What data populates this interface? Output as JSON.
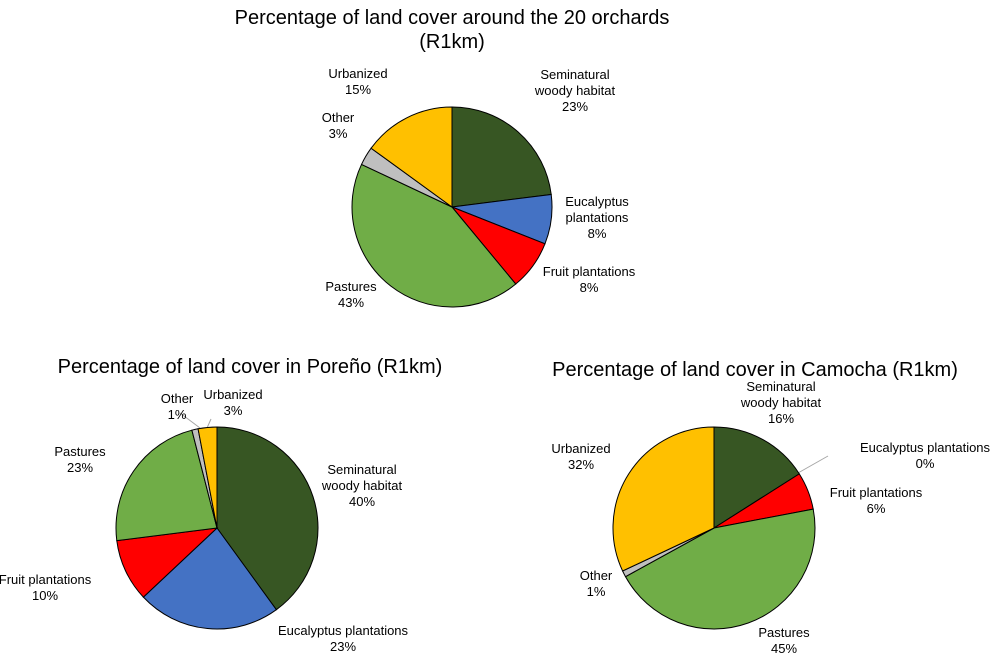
{
  "chart_data": [
    {
      "type": "pie",
      "title": "Percentage of land cover around the 20 orchards (R1km)",
      "categories": [
        "Seminatural woody habitat",
        "Eucalyptus plantations",
        "Fruit plantations",
        "Pastures",
        "Other",
        "Urbanized"
      ],
      "values": [
        23,
        8,
        8,
        43,
        3,
        15
      ],
      "value_labels": [
        "23%",
        "8%",
        "8%",
        "43%",
        "3%",
        "15%"
      ],
      "colors": [
        "#375623",
        "#4472c4",
        "#ff0000",
        "#70ad47",
        "#bfbfbf",
        "#ffc000"
      ]
    },
    {
      "type": "pie",
      "title": "Percentage of land cover in Poreño (R1km)",
      "categories": [
        "Seminatural woody habitat",
        "Eucalyptus plantations",
        "Fruit plantations",
        "Pastures",
        "Other",
        "Urbanized"
      ],
      "values": [
        40,
        23,
        10,
        23,
        1,
        3
      ],
      "value_labels": [
        "40%",
        "23%",
        "10%",
        "23%",
        "1%",
        "3%"
      ],
      "colors": [
        "#375623",
        "#4472c4",
        "#ff0000",
        "#70ad47",
        "#bfbfbf",
        "#ffc000"
      ]
    },
    {
      "type": "pie",
      "title": "Percentage of land cover in Camocha (R1km)",
      "categories": [
        "Seminatural woody habitat",
        "Eucalyptus plantations",
        "Fruit plantations",
        "Pastures",
        "Other",
        "Urbanized"
      ],
      "values": [
        16,
        0,
        6,
        45,
        1,
        32
      ],
      "value_labels": [
        "16%",
        "0%",
        "6%",
        "45%",
        "1%",
        "32%"
      ],
      "colors": [
        "#375623",
        "#4472c4",
        "#ff0000",
        "#70ad47",
        "#bfbfbf",
        "#ffc000"
      ]
    }
  ]
}
